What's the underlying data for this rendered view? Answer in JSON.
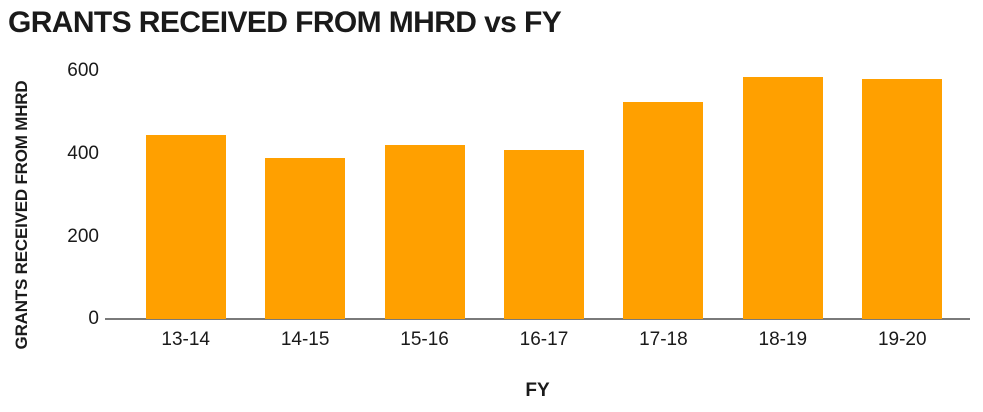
{
  "chart_data": {
    "type": "bar",
    "title": "GRANTS RECEIVED FROM MHRD vs FY",
    "xlabel": "FY",
    "ylabel": "GRANTS RECEIVED FROM MHRD",
    "categories": [
      "13-14",
      "14-15",
      "15-16",
      "16-17",
      "17-18",
      "18-19",
      "19-20"
    ],
    "values": [
      445,
      390,
      420,
      410,
      525,
      585,
      580
    ],
    "ylim": [
      0,
      600
    ],
    "ytick_labels": [
      "600",
      "400",
      "200",
      "0"
    ],
    "grid": false,
    "legend": false,
    "bar_color": "#FFA000",
    "axis_line_color": "#7A7A7A",
    "text_color": "#1A1A1A"
  }
}
